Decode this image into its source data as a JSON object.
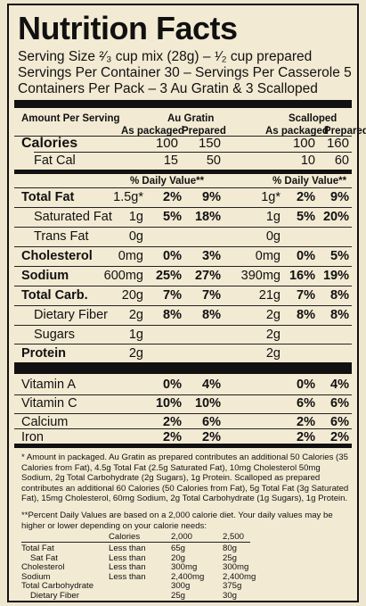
{
  "header": {
    "title": "Nutrition Facts",
    "serving_size": "Serving Size ²⁄₃ cup mix (28g) – ¹⁄₂ cup prepared",
    "servings": "Servings Per Container 30 – Servings Per Casserole 5",
    "containers": "Containers Per Pack – 3 Au Gratin & 3 Scalloped"
  },
  "columns": {
    "amount_per_serving": "Amount Per Serving",
    "au_gratin": "Au Gratin",
    "scalloped": "Scalloped",
    "as_packaged": "As packaged",
    "prepared": "Prepared"
  },
  "calories": {
    "label": "Calories",
    "ag_pack": "100",
    "ag_prep": "150",
    "sc_pack": "100",
    "sc_prep": "160",
    "fat_label": "Fat Cal",
    "fat_ag_pack": "15",
    "fat_ag_prep": "50",
    "fat_sc_pack": "10",
    "fat_sc_prep": "60"
  },
  "dv_header": "% Daily Value**",
  "nutrients": [
    {
      "label": "Total Fat",
      "amt1": "1.5g*",
      "dv1": "2%",
      "dv1p": "9%",
      "amt2": "1g*",
      "dv2": "2%",
      "dv2p": "9%"
    },
    {
      "label": "Saturated Fat",
      "amt1": "1g",
      "dv1": "5%",
      "dv1p": "18%",
      "amt2": "1g",
      "dv2": "5%",
      "dv2p": "20%"
    },
    {
      "label": "Trans Fat",
      "amt1": "0g",
      "dv1": "",
      "dv1p": "",
      "amt2": "0g",
      "dv2": "",
      "dv2p": ""
    },
    {
      "label": "Cholesterol",
      "amt1": "0mg",
      "dv1": "0%",
      "dv1p": "3%",
      "amt2": "0mg",
      "dv2": "0%",
      "dv2p": "5%"
    },
    {
      "label": "Sodium",
      "amt1": "600mg",
      "dv1": "25%",
      "dv1p": "27%",
      "amt2": "390mg",
      "dv2": "16%",
      "dv2p": "19%"
    },
    {
      "label": "Total Carb.",
      "amt1": "20g",
      "dv1": "7%",
      "dv1p": "7%",
      "amt2": "21g",
      "dv2": "7%",
      "dv2p": "8%"
    },
    {
      "label": "Dietary Fiber",
      "amt1": "2g",
      "dv1": "8%",
      "dv1p": "8%",
      "amt2": "2g",
      "dv2": "8%",
      "dv2p": "8%"
    },
    {
      "label": "Sugars",
      "amt1": "1g",
      "dv1": "",
      "dv1p": "",
      "amt2": "2g",
      "dv2": "",
      "dv2p": ""
    },
    {
      "label": "Protein",
      "amt1": "2g",
      "dv1": "",
      "dv1p": "",
      "amt2": "2g",
      "dv2": "",
      "dv2p": ""
    }
  ],
  "vitamins": [
    {
      "label": "Vitamin A",
      "v1": "0%",
      "v1p": "4%",
      "v2": "0%",
      "v2p": "4%"
    },
    {
      "label": "Vitamin C",
      "v1": "10%",
      "v1p": "10%",
      "v2": "6%",
      "v2p": "6%"
    },
    {
      "label": "Calcium",
      "v1": "2%",
      "v1p": "6%",
      "v2": "2%",
      "v2p": "6%"
    },
    {
      "label": "Iron",
      "v1": "2%",
      "v1p": "2%",
      "v2": "2%",
      "v2p": "2%"
    }
  ],
  "footnote1": "* Amount in packaged. Au Gratin as prepared contributes an additional 50 Calories (35 Calories from Fat), 4.5g Total Fat (2.5g Saturated Fat), 10mg Cholesterol 50mg Sodium, 2g Total Carbohydrate (2g Sugars), 1g Protein. Scalloped as prepared contributes an additional 60 Calories (50 Calories from Fat), 5g Total Fat (3g Saturated Fat), 15mg Cholesterol, 60mg Sodium, 2g Total Carbohydrate (1g Sugars), 1g Protein.",
  "footnote2": "**Percent Daily Values are based on a 2,000 calorie diet. Your daily values may be higher or lower depending on your calorie needs:",
  "dv_table": {
    "header": [
      "Calories",
      "2,000",
      "2,500"
    ],
    "rows": [
      [
        "Total Fat",
        "Less than",
        "65g",
        "80g"
      ],
      [
        "Sat Fat",
        "Less than",
        "20g",
        "25g"
      ],
      [
        "Cholesterol",
        "Less than",
        "300mg",
        "300mg"
      ],
      [
        "Sodium",
        "Less than",
        "2,400mg",
        "2,400mg"
      ],
      [
        "Total Carbohydrate",
        "",
        "300g",
        "375g"
      ],
      [
        "Dietary Fiber",
        "",
        "25g",
        "30g"
      ]
    ]
  }
}
